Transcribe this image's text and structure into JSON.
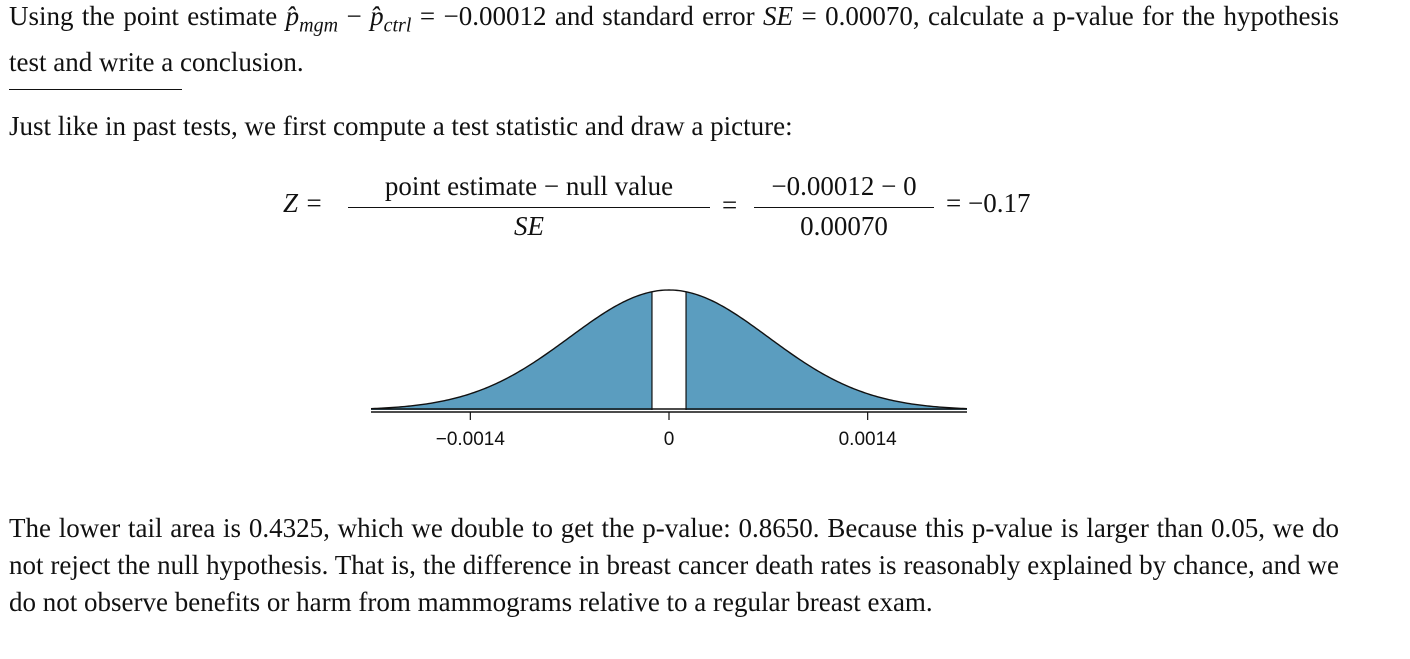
{
  "question": {
    "prefix": "Using the point estimate ",
    "p1_sub": "mgm",
    "minus": " − ",
    "p2_sub": "ctrl",
    "equals_value": " = −0.00012 and standard error ",
    "se_symbol": "SE",
    "se_value": " = 0.00070, calculate a p-value for the hypothesis test and write a conclusion."
  },
  "intro": "Just like in past tests, we first compute a test statistic and draw a picture:",
  "formula": {
    "z": "Z =",
    "frac1_num": "point estimate − null value",
    "frac1_den": "SE",
    "eq1": "=",
    "frac2_num": "−0.00012 − 0",
    "frac2_den": "0.00070",
    "result": "= −0.17"
  },
  "chart_data": {
    "type": "area",
    "distribution": "normal",
    "mean": 0,
    "sd": 0.0007,
    "shaded_tails": "both",
    "unshaded_interval": [
      -0.00012,
      0.00012
    ],
    "tick_labels": [
      "−0.0014",
      "0",
      "0.0014"
    ],
    "ticks": [
      -0.0014,
      0,
      0.0014
    ],
    "xlim": [
      -0.0021,
      0.0021
    ],
    "fill_color": "#5b9dbf"
  },
  "conclusion": "The lower tail area is 0.4325, which we double to get the p-value: 0.8650. Because this p-value is larger than 0.05, we do not reject the null hypothesis. That is, the difference in breast cancer death rates is reasonably explained by chance, and we do not observe benefits or harm from mammograms relative to a regular breast exam."
}
